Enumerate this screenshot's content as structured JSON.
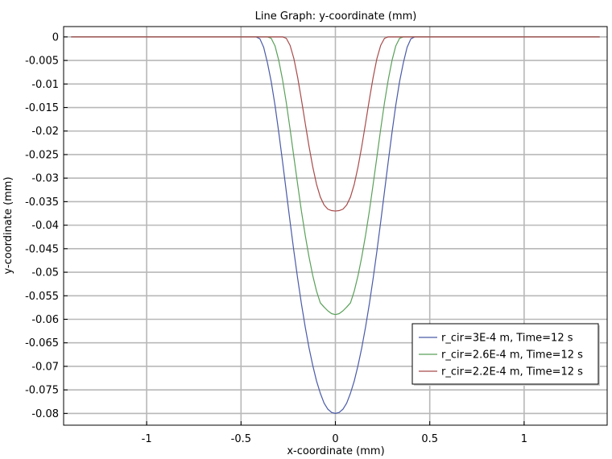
{
  "chart_data": {
    "type": "line",
    "title": "Line Graph: y-coordinate (mm)",
    "xlabel": "x-coordinate (mm)",
    "ylabel": "y-coordinate (mm)",
    "xlim": [
      -1.44,
      1.44
    ],
    "ylim": [
      -0.0825,
      0.0022
    ],
    "xticks": [
      -1,
      -0.5,
      0,
      0.5,
      1
    ],
    "xtick_labels": [
      "-1",
      "-0.5",
      "0",
      "0.5",
      "1"
    ],
    "yticks": [
      0,
      -0.005,
      -0.01,
      -0.015,
      -0.02,
      -0.025,
      -0.03,
      -0.035,
      -0.04,
      -0.045,
      -0.05,
      -0.055,
      -0.06,
      -0.065,
      -0.07,
      -0.075,
      -0.08
    ],
    "ytick_labels": [
      "0",
      "-0.005",
      "-0.01",
      "-0.015",
      "-0.02",
      "-0.025",
      "-0.03",
      "-0.035",
      "-0.04",
      "-0.045",
      "-0.05",
      "-0.055",
      "-0.06",
      "-0.065",
      "-0.07",
      "-0.075",
      "-0.08"
    ],
    "grid": true,
    "legend_position": "bottom-right",
    "series": [
      {
        "name": "r_cir=3E-4 m, Time=12 s",
        "color": "#4a5aa8",
        "x": [
          -1.4,
          -0.44,
          -0.42,
          -0.4,
          -0.38,
          -0.36,
          -0.34,
          -0.32,
          -0.3,
          -0.28,
          -0.26,
          -0.24,
          -0.22,
          -0.2,
          -0.18,
          -0.16,
          -0.14,
          -0.12,
          -0.1,
          -0.08,
          -0.06,
          -0.04,
          -0.02,
          0,
          0.02,
          0.04,
          0.06,
          0.08,
          0.1,
          0.12,
          0.14,
          0.16,
          0.18,
          0.2,
          0.22,
          0.24,
          0.26,
          0.28,
          0.3,
          0.32,
          0.34,
          0.36,
          0.38,
          0.4,
          0.42,
          0.44,
          1.4
        ],
        "y": [
          0,
          0,
          0,
          -0.0004,
          -0.0022,
          -0.0055,
          -0.0095,
          -0.0145,
          -0.0203,
          -0.0265,
          -0.0329,
          -0.0393,
          -0.0455,
          -0.0513,
          -0.0567,
          -0.0616,
          -0.066,
          -0.0698,
          -0.0731,
          -0.0757,
          -0.0778,
          -0.0791,
          -0.0798,
          -0.08,
          -0.0798,
          -0.0791,
          -0.0778,
          -0.0757,
          -0.0731,
          -0.0698,
          -0.066,
          -0.0616,
          -0.0567,
          -0.0513,
          -0.0455,
          -0.0393,
          -0.0329,
          -0.0265,
          -0.0203,
          -0.0145,
          -0.0095,
          -0.0055,
          -0.0022,
          -0.0004,
          0,
          0,
          0
        ]
      },
      {
        "name": "r_cir=2.6E-4 m, Time=12 s",
        "color": "#5aa05a",
        "x": [
          -1.4,
          -0.36,
          -0.34,
          -0.32,
          -0.3,
          -0.28,
          -0.26,
          -0.24,
          -0.22,
          -0.2,
          -0.18,
          -0.16,
          -0.14,
          -0.12,
          -0.1,
          -0.08,
          -0.06,
          -0.04,
          -0.02,
          0,
          0.02,
          0.04,
          0.06,
          0.08,
          0.1,
          0.12,
          0.14,
          0.16,
          0.18,
          0.2,
          0.22,
          0.24,
          0.26,
          0.28,
          0.3,
          0.32,
          0.34,
          0.36,
          1.4
        ],
        "y": [
          0,
          0,
          -0.0003,
          -0.0019,
          -0.005,
          -0.0091,
          -0.014,
          -0.0196,
          -0.0255,
          -0.0313,
          -0.037,
          -0.0421,
          -0.0467,
          -0.0507,
          -0.054,
          -0.0565,
          -0.0574,
          -0.0582,
          -0.0588,
          -0.059,
          -0.0588,
          -0.0582,
          -0.0574,
          -0.0565,
          -0.054,
          -0.0507,
          -0.0467,
          -0.0421,
          -0.037,
          -0.0313,
          -0.0255,
          -0.0196,
          -0.014,
          -0.0091,
          -0.005,
          -0.0019,
          -0.0003,
          0,
          0
        ]
      },
      {
        "name": "r_cir=2.2E-4 m, Time=12 s",
        "color": "#a84a4a",
        "x": [
          -1.4,
          -0.28,
          -0.26,
          -0.24,
          -0.22,
          -0.2,
          -0.18,
          -0.16,
          -0.14,
          -0.12,
          -0.1,
          -0.08,
          -0.06,
          -0.04,
          -0.02,
          0,
          0.02,
          0.04,
          0.06,
          0.08,
          0.1,
          0.12,
          0.14,
          0.16,
          0.18,
          0.2,
          0.22,
          0.24,
          0.26,
          0.28,
          1.4
        ],
        "y": [
          0,
          0,
          -0.0003,
          -0.0018,
          -0.0046,
          -0.0086,
          -0.0133,
          -0.0183,
          -0.0232,
          -0.0276,
          -0.0313,
          -0.034,
          -0.0357,
          -0.0366,
          -0.0369,
          -0.037,
          -0.0369,
          -0.0366,
          -0.0357,
          -0.034,
          -0.0313,
          -0.0276,
          -0.0232,
          -0.0183,
          -0.0133,
          -0.0086,
          -0.0046,
          -0.0018,
          -0.0003,
          0,
          0
        ]
      }
    ]
  }
}
